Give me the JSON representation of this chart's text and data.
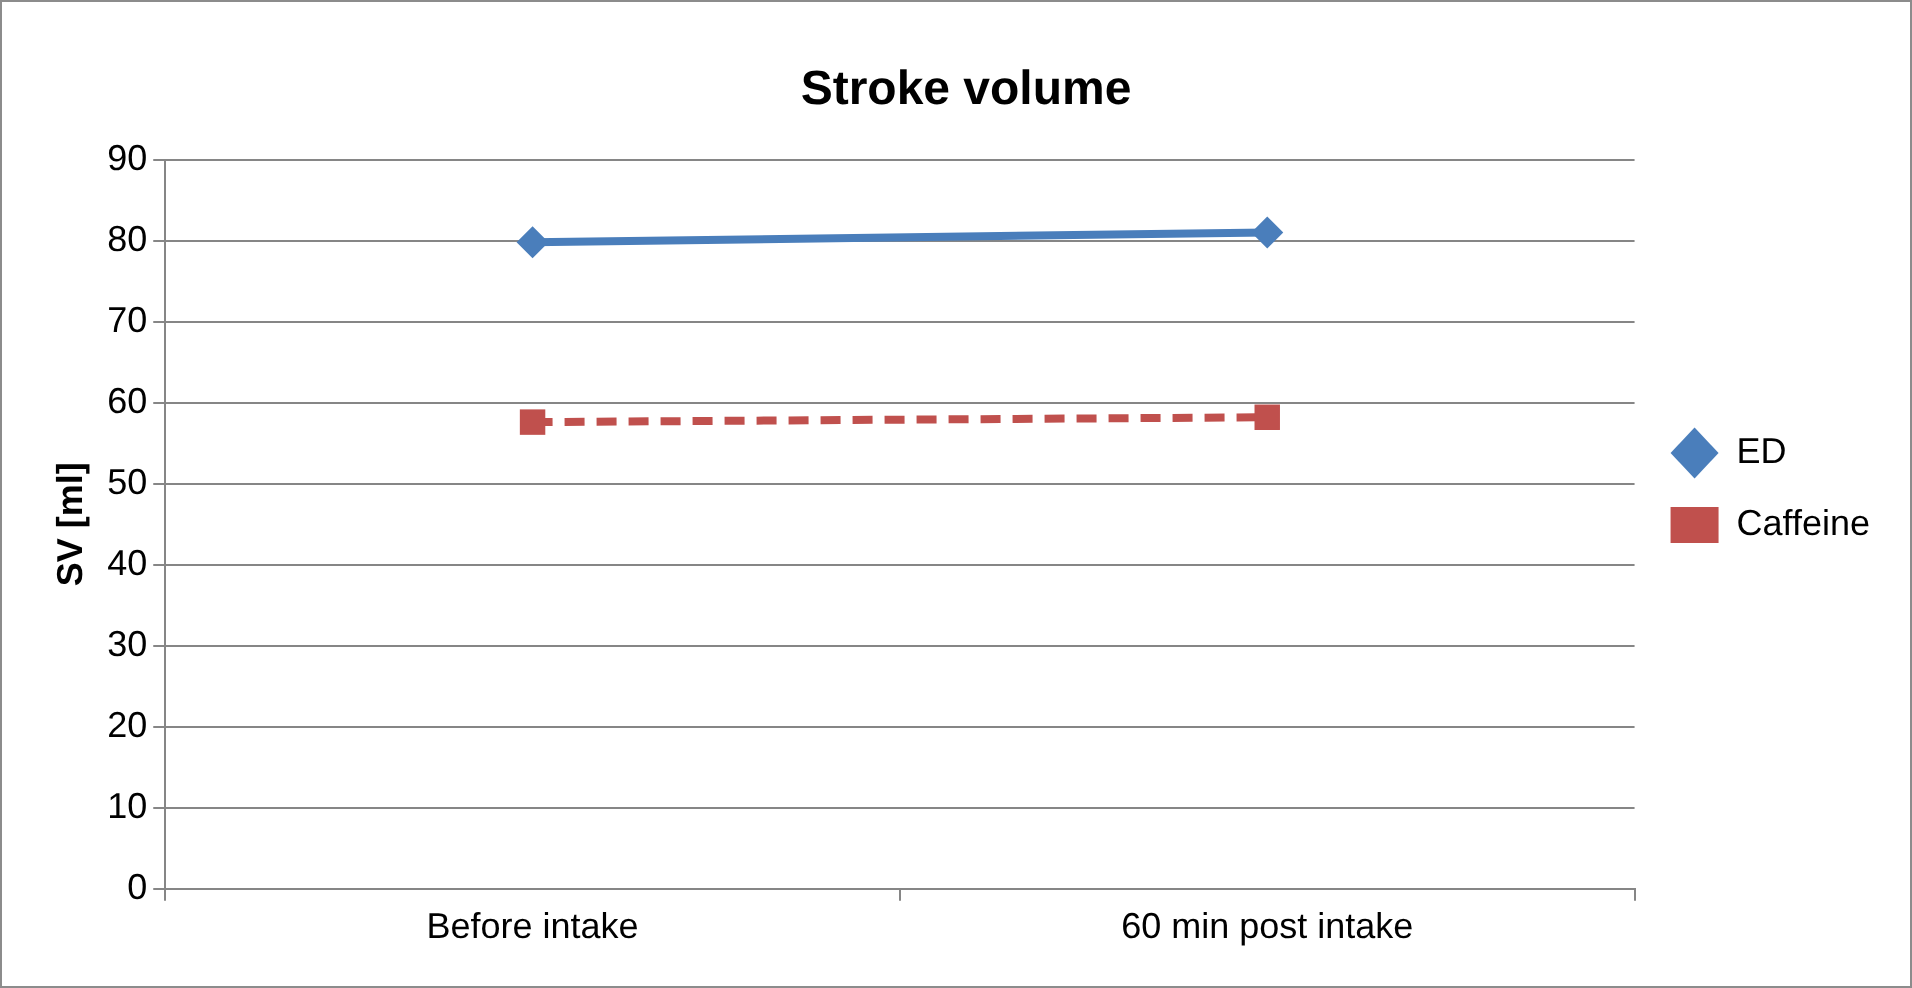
{
  "chart_data": {
    "type": "line",
    "title": "Stroke volume",
    "ylabel": "SV [ml]",
    "categories": [
      "Before intake",
      "60 min post intake"
    ],
    "series": [
      {
        "name": "ED",
        "color": "#4a7ebb",
        "values": [
          79.8,
          81
        ],
        "marker": "diamond",
        "line_style": "solid"
      },
      {
        "name": "Caffeine",
        "color": "#c0504d",
        "values": [
          57.6,
          58.2
        ],
        "marker": "square",
        "line_style": "dashed"
      }
    ],
    "ylim": [
      0,
      90
    ],
    "yticks": [
      0,
      10,
      20,
      30,
      40,
      50,
      60,
      70,
      80,
      90
    ],
    "grid": "y",
    "legend": "right"
  }
}
